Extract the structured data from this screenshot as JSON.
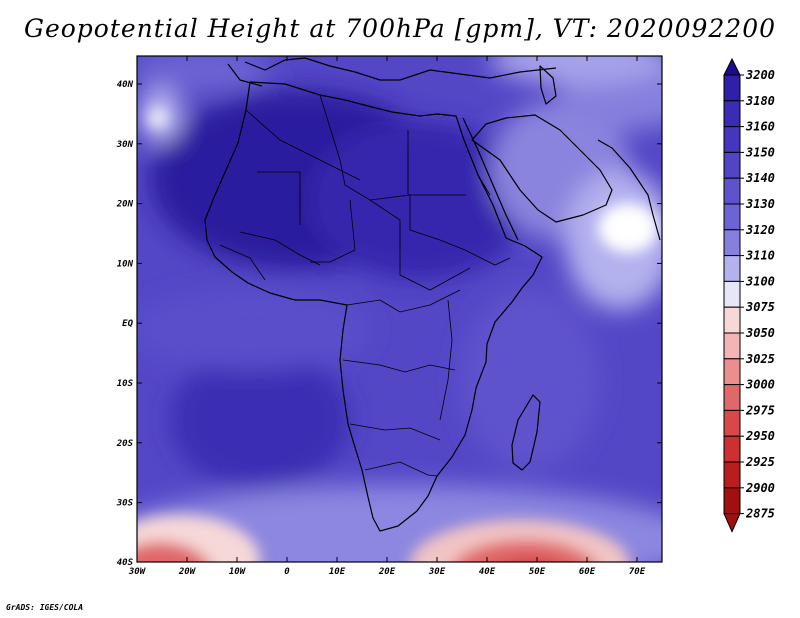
{
  "title": "Geopotential Height at 700hPa [gpm], VT: 2020092200",
  "credit": "GrADS: IGES/COLA",
  "map": {
    "lat_labels": [
      "40N",
      "30N",
      "20N",
      "10N",
      "EQ",
      "10S",
      "20S",
      "30S",
      "40S"
    ],
    "lon_labels": [
      "30W",
      "20W",
      "10W",
      "0",
      "10E",
      "20E",
      "30E",
      "40E",
      "50E",
      "60E",
      "70E"
    ]
  },
  "colorbar": {
    "levels": [
      "3200",
      "3180",
      "3160",
      "3150",
      "3140",
      "3130",
      "3120",
      "3110",
      "3100",
      "3075",
      "3050",
      "3025",
      "3000",
      "2975",
      "2950",
      "2925",
      "2900",
      "2875"
    ],
    "colors": [
      "#1a0a8c",
      "#2e20a8",
      "#3a2db4",
      "#4536bd",
      "#5144c5",
      "#5e53cc",
      "#6c63d4",
      "#8580dd",
      "#b3b1ee",
      "#e6e6f8",
      "#f7d8d8",
      "#f2b4b4",
      "#ea8e8e",
      "#e06868",
      "#d84848",
      "#cc3030",
      "#b81e1e",
      "#a01010"
    ]
  }
}
